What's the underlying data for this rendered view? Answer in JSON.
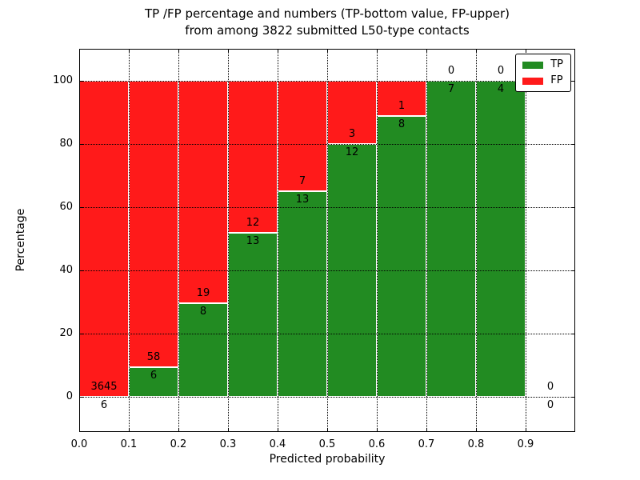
{
  "title": {
    "line1": "TP /FP percentage and numbers (TP-bottom value, FP-upper)",
    "line2": "from among 3822 submitted L50-type contacts"
  },
  "chart_data": {
    "type": "bar",
    "stacked": true,
    "title": "TP /FP percentage and numbers (TP-bottom value, FP-upper) from among 3822 submitted L50-type contacts",
    "xlabel": "Predicted probability",
    "ylabel": "Percentage",
    "xlim": [
      0.0,
      1.0
    ],
    "ylim": [
      -11,
      110
    ],
    "xticks": [
      0.0,
      0.1,
      0.2,
      0.3,
      0.4,
      0.5,
      0.6,
      0.7,
      0.8,
      0.9
    ],
    "xtick_labels": [
      "0.0",
      "0.1",
      "0.2",
      "0.3",
      "0.4",
      "0.5",
      "0.6",
      "0.7",
      "0.8",
      "0.9"
    ],
    "yticks": [
      0,
      20,
      40,
      60,
      80,
      100
    ],
    "ytick_labels": [
      "0",
      "20",
      "40",
      "60",
      "80",
      "100"
    ],
    "grid": "dotted black, drawn above bars",
    "total_contacts": 3822,
    "colors": {
      "tp": "#228B22",
      "fp": "#FF1A1A",
      "bar_edge": "#FFFFFF"
    },
    "legend": {
      "position": "upper right",
      "entries": [
        {
          "label": "TP",
          "color": "#228B22"
        },
        {
          "label": "FP",
          "color": "#FF1A1A"
        }
      ]
    },
    "bins": [
      {
        "range": [
          0.0,
          0.1
        ],
        "tp": 6,
        "fp": 3645,
        "tp_pct": 0.16
      },
      {
        "range": [
          0.1,
          0.2
        ],
        "tp": 6,
        "fp": 58,
        "tp_pct": 9.38
      },
      {
        "range": [
          0.2,
          0.3
        ],
        "tp": 8,
        "fp": 19,
        "tp_pct": 29.63
      },
      {
        "range": [
          0.3,
          0.4
        ],
        "tp": 13,
        "fp": 12,
        "tp_pct": 52.0
      },
      {
        "range": [
          0.4,
          0.5
        ],
        "tp": 13,
        "fp": 7,
        "tp_pct": 65.0
      },
      {
        "range": [
          0.5,
          0.6
        ],
        "tp": 12,
        "fp": 3,
        "tp_pct": 80.0
      },
      {
        "range": [
          0.6,
          0.7
        ],
        "tp": 8,
        "fp": 1,
        "tp_pct": 88.89
      },
      {
        "range": [
          0.7,
          0.8
        ],
        "tp": 7,
        "fp": 0,
        "tp_pct": 100.0
      },
      {
        "range": [
          0.8,
          0.9
        ],
        "tp": 4,
        "fp": 0,
        "tp_pct": 100.0
      },
      {
        "range": [
          0.9,
          1.0
        ],
        "tp": 0,
        "fp": 0,
        "tp_pct": 0.0
      }
    ]
  }
}
